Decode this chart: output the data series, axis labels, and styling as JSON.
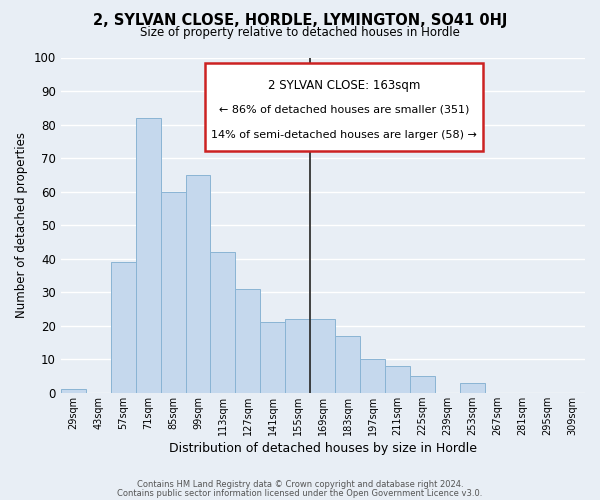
{
  "title": "2, SYLVAN CLOSE, HORDLE, LYMINGTON, SO41 0HJ",
  "subtitle": "Size of property relative to detached houses in Hordle",
  "xlabel": "Distribution of detached houses by size in Hordle",
  "ylabel": "Number of detached properties",
  "categories": [
    "29sqm",
    "43sqm",
    "57sqm",
    "71sqm",
    "85sqm",
    "99sqm",
    "113sqm",
    "127sqm",
    "141sqm",
    "155sqm",
    "169sqm",
    "183sqm",
    "197sqm",
    "211sqm",
    "225sqm",
    "239sqm",
    "253sqm",
    "267sqm",
    "281sqm",
    "295sqm",
    "309sqm"
  ],
  "values": [
    1,
    0,
    39,
    82,
    60,
    65,
    42,
    31,
    21,
    22,
    22,
    17,
    10,
    8,
    5,
    0,
    3,
    0,
    0,
    0,
    0
  ],
  "bar_color": "#c5d8ed",
  "bar_edge_color": "#8ab4d4",
  "marker_label": "2 SYLVAN CLOSE: 163sqm",
  "annotation_line1": "← 86% of detached houses are smaller (351)",
  "annotation_line2": "14% of semi-detached houses are larger (58) →",
  "annotation_box_color": "#ffffff",
  "annotation_box_edge": "#cc2222",
  "vline_color": "#333333",
  "ylim": [
    0,
    100
  ],
  "yticks": [
    0,
    10,
    20,
    30,
    40,
    50,
    60,
    70,
    80,
    90,
    100
  ],
  "footer1": "Contains HM Land Registry data © Crown copyright and database right 2024.",
  "footer2": "Contains public sector information licensed under the Open Government Licence v3.0.",
  "background_color": "#e8eef5",
  "grid_color": "#ffffff"
}
